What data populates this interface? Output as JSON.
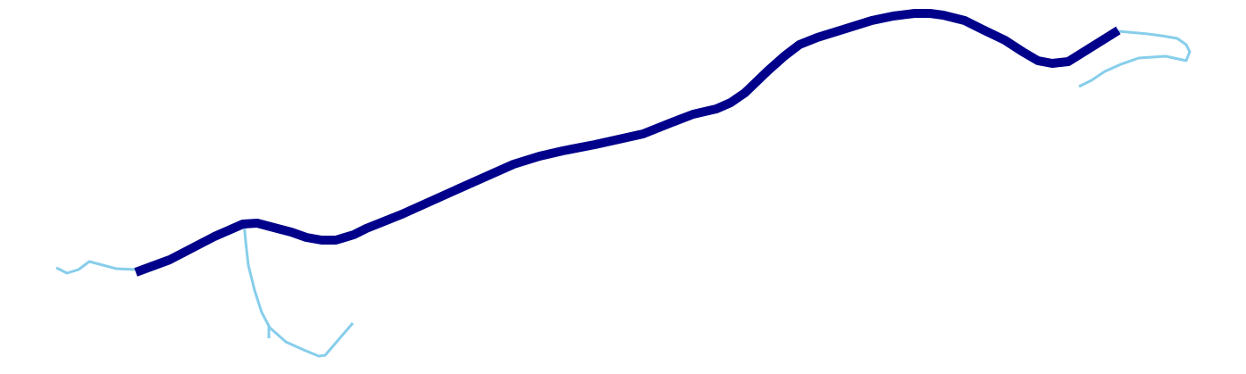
{
  "map": {
    "colors": {
      "background": "#ffffff",
      "main_route": "#00008b",
      "branch_route": "#87ceeb"
    },
    "features": [
      {
        "kind": "main-route",
        "name": "main-route"
      },
      {
        "kind": "branch",
        "name": "branch-west-end"
      },
      {
        "kind": "branch",
        "name": "branch-south-loop"
      },
      {
        "kind": "branch",
        "name": "branch-east-loop"
      }
    ]
  }
}
